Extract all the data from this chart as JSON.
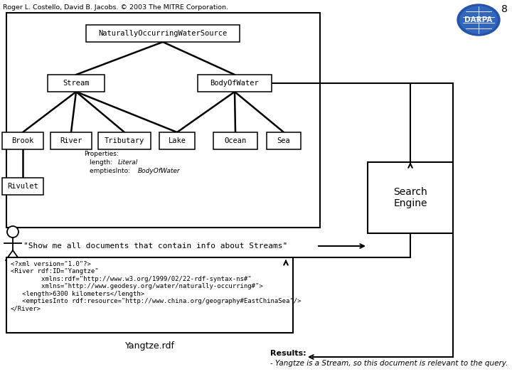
{
  "header": "Roger L. Costello, David B. Jacobs. © 2003 The MITRE Corporation.",
  "page_num": "8",
  "bg_color": "#ffffff",
  "query_text": "\"Show me all documents that contain info about Streams\"",
  "xml_content_lines": [
    "<?xml version=\"1.0\"?>",
    "<River rdf:ID=\"Yangtze\"",
    "        xmlns:rdf=\"http://www.w3.org/1999/02/22-rdf-syntax-ns#\"",
    "        xmlns=\"http://www.geodesy.org/water/naturally-occurring#\">",
    "   <length>6300 kilometers</length>",
    "   <emptiesInto rdf:resource=\"http://www.china.org/geography#EastChinaSea\"/>",
    "</River>"
  ],
  "xml_label": "Yangtze.rdf",
  "results_label": "Results:",
  "results_text": "- Yangtze is a Stream, so this document is relevant to the query."
}
